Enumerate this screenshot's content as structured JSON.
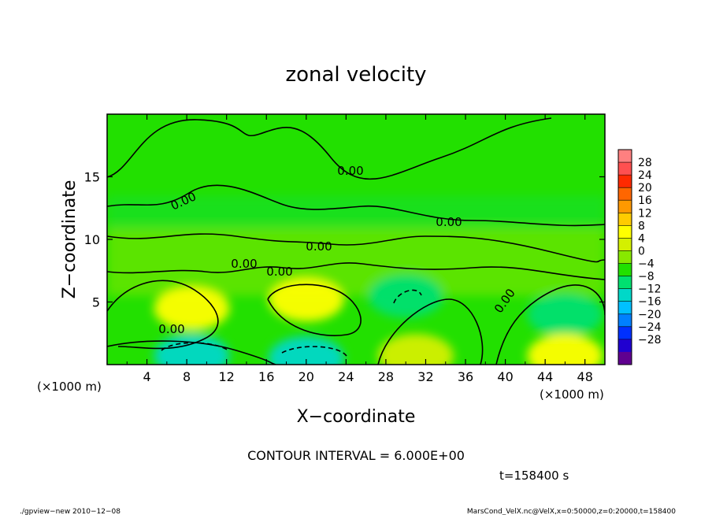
{
  "chart_data": {
    "type": "heatmap",
    "title": "zonal velocity",
    "xlabel": "X−coordinate",
    "ylabel": "Z−coordinate",
    "x_unit": "(×1000 m)",
    "y_unit": "(×1000 m)",
    "xlim": [
      0,
      50
    ],
    "ylim": [
      0,
      20
    ],
    "x_ticks": [
      4,
      8,
      12,
      16,
      20,
      24,
      28,
      32,
      36,
      40,
      44,
      48
    ],
    "y_ticks": [
      5,
      10,
      15
    ],
    "contour_interval_text": "CONTOUR INTERVAL = 6.000E+00",
    "time_text": "t=158400 s",
    "contour_labels": [
      "0.00",
      "0.00",
      "0.00",
      "0.00",
      "0.00",
      "0.00",
      "0.00",
      "0.00"
    ],
    "colorbar": {
      "labels": [
        "28",
        "24",
        "20",
        "16",
        "12",
        "8",
        "4",
        "0",
        "−4",
        "−8",
        "−12",
        "−16",
        "−20",
        "−24",
        "−28"
      ],
      "colors": [
        "#ff8080",
        "#ff5050",
        "#ff2a00",
        "#ff6600",
        "#ff9900",
        "#ffcc00",
        "#ffff00",
        "#d4f000",
        "#88e800",
        "#22e000",
        "#00e070",
        "#00d8c8",
        "#00c0ff",
        "#0080ff",
        "#0030ff",
        "#2000d0",
        "#600090"
      ]
    },
    "features": [
      {
        "x": 8.5,
        "z": 4.5,
        "value": 10,
        "label": "max"
      },
      {
        "x": 20,
        "z": 5.2,
        "value": 8,
        "label": "max"
      },
      {
        "x": 8.5,
        "z": 0.7,
        "value": -10,
        "label": "min"
      },
      {
        "x": 20,
        "z": 0.5,
        "value": -10,
        "label": "min"
      },
      {
        "x": 46,
        "z": 4,
        "value": -9,
        "label": "min"
      },
      {
        "x": 46,
        "z": 0.7,
        "value": 7,
        "label": "max"
      },
      {
        "x": 31,
        "z": 0.7,
        "value": 6,
        "label": "max"
      },
      {
        "x": 30,
        "z": 5.5,
        "value": -6,
        "label": "min"
      }
    ]
  },
  "footer": {
    "left": "./gpview−new   2010−12−08",
    "right": "MarsCond_VelX.nc@VelX,x=0:50000,z=0:20000,t=158400"
  }
}
